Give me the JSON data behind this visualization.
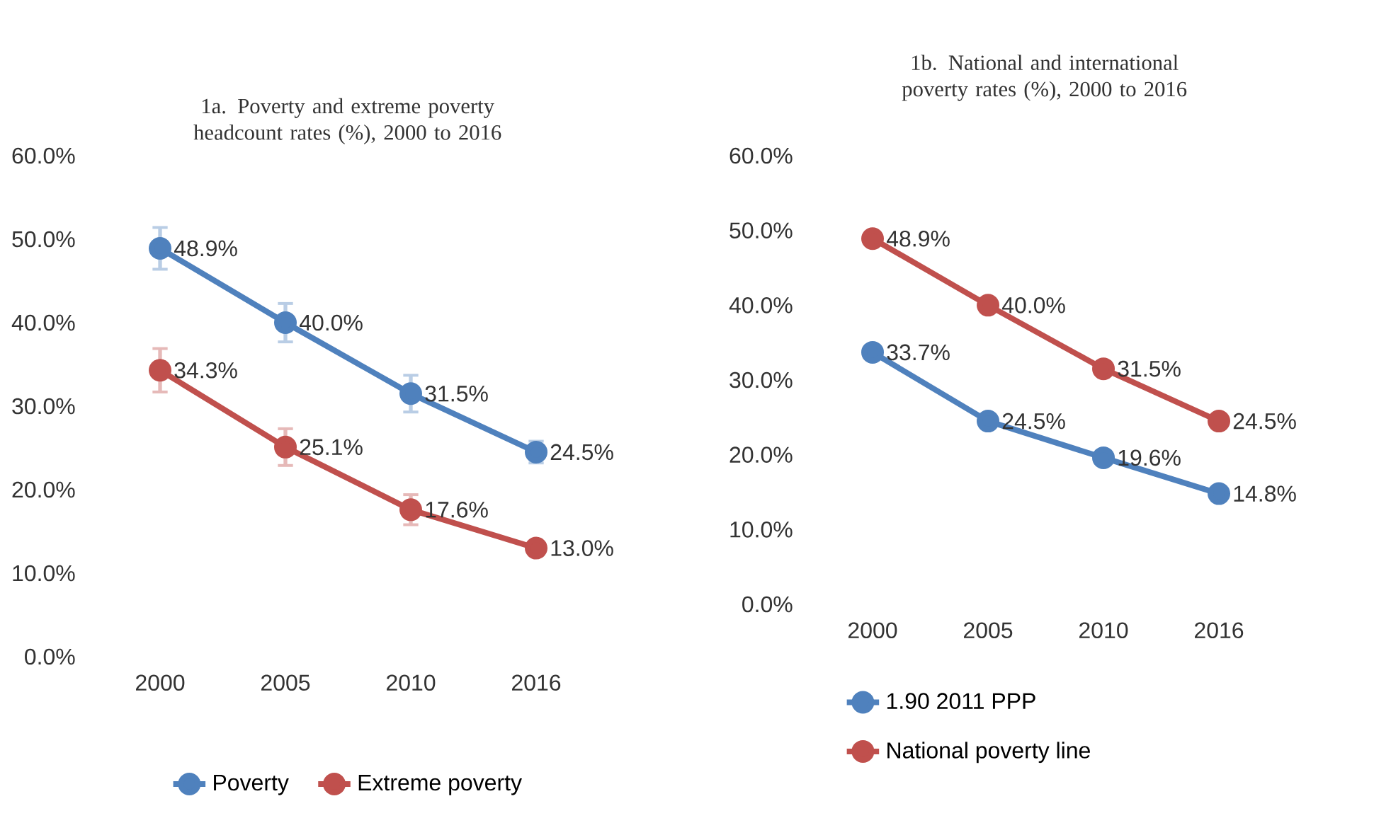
{
  "chart_data": [
    {
      "type": "line",
      "title": "1a. Poverty and extreme poverty headcount rates (%), 2000 to 2016",
      "categories": [
        "2000",
        "2005",
        "2010",
        "2016"
      ],
      "series": [
        {
          "name": "Poverty",
          "color": "#4f81bd",
          "values": [
            48.9,
            40.0,
            31.5,
            24.5
          ],
          "errors": [
            2.5,
            2.3,
            2.2,
            1.3
          ],
          "value_labels": [
            "48.9%",
            "40.0%",
            "31.5%",
            "24.5%"
          ]
        },
        {
          "name": "Extreme poverty",
          "color": "#c0504d",
          "values": [
            34.3,
            25.1,
            17.6,
            13.0
          ],
          "errors": [
            2.6,
            2.2,
            1.8,
            null
          ],
          "value_labels": [
            "34.3%",
            "25.1%",
            "17.6%",
            "13.0%"
          ]
        }
      ],
      "ylim": [
        0,
        60
      ],
      "yticks": [
        {
          "value": 0,
          "label": "0.0%"
        },
        {
          "value": 10,
          "label": "10.0%"
        },
        {
          "value": 20,
          "label": "20.0%"
        },
        {
          "value": 30,
          "label": "30.0%"
        },
        {
          "value": 40,
          "label": "40.0%"
        },
        {
          "value": 50,
          "label": "50.0%"
        },
        {
          "value": 60,
          "label": "60.0%"
        }
      ],
      "grid": false,
      "legend": "bottom",
      "marker": "circle",
      "line_style": "solid"
    },
    {
      "type": "line",
      "title": "1b. National and international poverty rates (%), 2000 to 2016",
      "categories": [
        "2000",
        "2005",
        "2010",
        "2016"
      ],
      "series": [
        {
          "name": "1.90 2011 PPP",
          "color": "#4f81bd",
          "values": [
            33.7,
            24.5,
            19.6,
            14.8
          ],
          "value_labels": [
            "33.7%",
            "24.5%",
            "19.6%",
            "14.8%"
          ]
        },
        {
          "name": "National poverty line",
          "color": "#c0504d",
          "values": [
            48.9,
            40.0,
            31.5,
            24.5
          ],
          "value_labels": [
            "48.9%",
            "40.0%",
            "31.5%",
            "24.5%"
          ]
        }
      ],
      "ylim": [
        0,
        60
      ],
      "yticks": [
        {
          "value": 0,
          "label": "0.0%"
        },
        {
          "value": 10,
          "label": "10.0%"
        },
        {
          "value": 20,
          "label": "20.0%"
        },
        {
          "value": 30,
          "label": "30.0%"
        },
        {
          "value": 40,
          "label": "40.0%"
        },
        {
          "value": 50,
          "label": "50.0%"
        },
        {
          "value": 60,
          "label": "60.0%"
        }
      ],
      "grid": false,
      "legend": "bottom",
      "marker": "circle",
      "line_style": "solid"
    }
  ]
}
